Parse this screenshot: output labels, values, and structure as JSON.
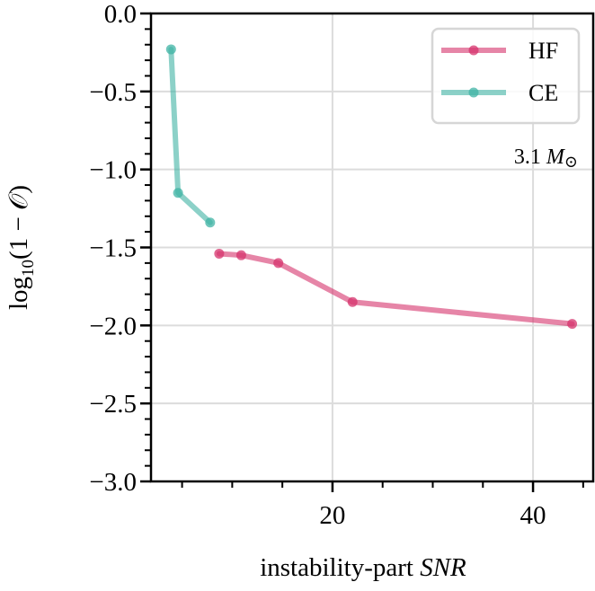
{
  "chart_data": {
    "type": "line",
    "title": "",
    "xlabel": "instability-part",
    "xlabel_italic": "SNR",
    "ylabel_prefix": "log",
    "ylabel_sub": "10",
    "ylabel_suffix": "(1 − 𝒪)",
    "xlim": [
      1.9,
      46
    ],
    "ylim": [
      -3.0,
      0.0
    ],
    "x_major_ticks": [
      20,
      40
    ],
    "x_major_tick_labels": [
      "20",
      "40"
    ],
    "x_minor_step": 5,
    "y_major_ticks": [
      0.0,
      -0.5,
      -1.0,
      -1.5,
      -2.0,
      -2.5,
      -3.0
    ],
    "y_major_tick_labels": [
      "0.0",
      "−0.5",
      "−1.0",
      "−1.5",
      "−2.0",
      "−2.5",
      "−3.0"
    ],
    "y_minor_step": 0.1,
    "grid": true,
    "legend_position": "top-right",
    "annotation": "3.1 M⊙",
    "annotation_number": "3.1",
    "annotation_symbol": "M",
    "annotation_sub": "⊙",
    "series": [
      {
        "name": "HF",
        "color": "#d6336c",
        "x": [
          8.7,
          10.9,
          14.6,
          22.0,
          43.9
        ],
        "y": [
          -1.54,
          -1.55,
          -1.6,
          -1.85,
          -1.99
        ]
      },
      {
        "name": "CE",
        "color": "#3fb3a4",
        "x": [
          3.9,
          4.6,
          7.8
        ],
        "y": [
          -0.23,
          -1.15,
          -1.34
        ]
      }
    ]
  }
}
